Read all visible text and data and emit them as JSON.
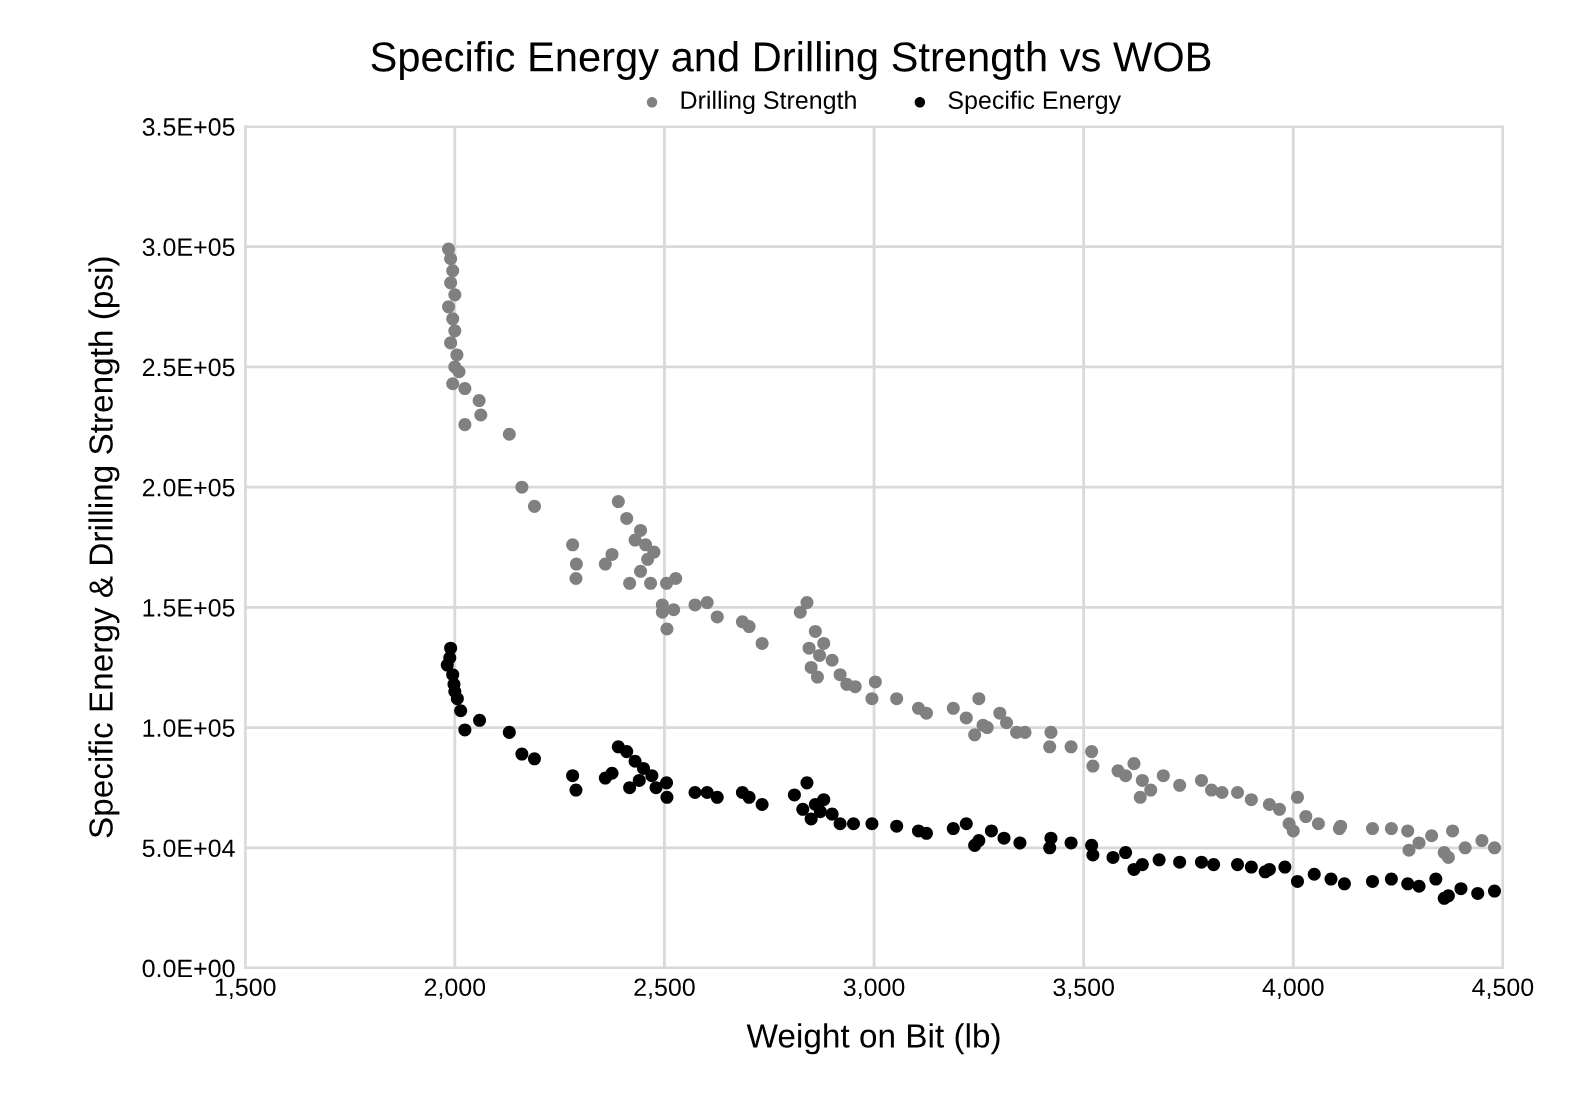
{
  "chart_data": {
    "type": "scatter",
    "title": "Specific Energy and Drilling Strength vs WOB",
    "xlabel": "Weight on Bit (lb)",
    "ylabel": "Specific Energy & Drilling Strength (psi)",
    "xlim": [
      1500,
      4500
    ],
    "xticks": [
      {
        "value": 1500,
        "label": "1,500"
      },
      {
        "value": 2000,
        "label": "2,000"
      },
      {
        "value": 2500,
        "label": "2,500"
      },
      {
        "value": 3000,
        "label": "3,000"
      },
      {
        "value": 3500,
        "label": "3,500"
      },
      {
        "value": 4000,
        "label": "4,000"
      },
      {
        "value": 4500,
        "label": "4,500"
      }
    ],
    "ylim": [
      0,
      350000
    ],
    "yticks": [
      {
        "value": 0,
        "label": "0.0E+00"
      },
      {
        "value": 50000,
        "label": "5.0E+04"
      },
      {
        "value": 100000,
        "label": "1.0E+05"
      },
      {
        "value": 150000,
        "label": "1.5E+05"
      },
      {
        "value": 200000,
        "label": "2.0E+05"
      },
      {
        "value": 250000,
        "label": "2.5E+05"
      },
      {
        "value": 300000,
        "label": "3.0E+05"
      },
      {
        "value": 350000,
        "label": "3.5E+05"
      }
    ],
    "grid": true,
    "legend": "top",
    "marker": "circle",
    "series": [
      {
        "name": "Drilling Strength",
        "color": "#808080",
        "x": [
          1985,
          1990,
          1995,
          1990,
          2000,
          1985,
          1995,
          2000,
          1990,
          2005,
          2000,
          2010,
          1995,
          2024,
          2058,
          2062,
          2024,
          2130,
          2160,
          2190,
          2281,
          2290,
          2289,
          2359,
          2375,
          2390,
          2410,
          2443,
          2460,
          2443,
          2475,
          2430,
          2455,
          2417,
          2467,
          2505,
          2527,
          2495,
          2495,
          2522,
          2506,
          2573,
          2602,
          2626,
          2686,
          2702,
          2733,
          2824,
          2840,
          2860,
          2850,
          2880,
          2870,
          2900,
          2919,
          2845,
          2865,
          2935,
          2955,
          3003,
          2995,
          3054,
          3106,
          3125,
          3189,
          3220,
          3250,
          3270,
          3300,
          3316,
          3240,
          3260,
          3340,
          3360,
          3422,
          3419,
          3470,
          3519,
          3522,
          3582,
          3600,
          3620,
          3640,
          3660,
          3690,
          3729,
          3635,
          3781,
          3805,
          3830,
          3867,
          3900,
          3943,
          3967,
          3990,
          4010,
          4030,
          4060,
          4110,
          4000,
          4113,
          4189,
          4234,
          4273,
          4276,
          4300,
          4330,
          4360,
          4380,
          4410,
          4450,
          4480,
          4370
        ],
        "values": [
          299000,
          295000,
          290000,
          285000,
          280000,
          275000,
          270000,
          265000,
          260000,
          255000,
          250000,
          248000,
          243000,
          241000,
          236000,
          230000,
          226000,
          222000,
          200000,
          192000,
          176000,
          168000,
          162000,
          168000,
          172000,
          194000,
          187000,
          182000,
          170000,
          165000,
          173000,
          178000,
          176000,
          160000,
          160000,
          160000,
          162000,
          151000,
          148000,
          149000,
          141000,
          151000,
          152000,
          146000,
          144000,
          142000,
          135000,
          148000,
          152000,
          140000,
          125000,
          135000,
          130000,
          128000,
          122000,
          133000,
          121000,
          118000,
          117000,
          119000,
          112000,
          112000,
          108000,
          106000,
          108000,
          104000,
          112000,
          100000,
          106000,
          102000,
          97000,
          101000,
          98000,
          98000,
          98000,
          92000,
          92000,
          90000,
          84000,
          82000,
          80000,
          85000,
          78000,
          74000,
          80000,
          76000,
          71000,
          78000,
          74000,
          73000,
          73000,
          70000,
          68000,
          66000,
          60000,
          71000,
          63000,
          60000,
          58000,
          57000,
          59000,
          58000,
          58000,
          57000,
          49000,
          52000,
          55000,
          48000,
          57000,
          50000,
          53000,
          50000,
          46000
        ]
      },
      {
        "name": "Specific Energy",
        "color": "#000000",
        "x": [
          1990,
          1982,
          1988,
          1998,
          1995,
          2006,
          2000,
          2014,
          2024,
          2059,
          2130,
          2160,
          2190,
          2281,
          2289,
          2359,
          2375,
          2390,
          2410,
          2430,
          2450,
          2440,
          2470,
          2480,
          2505,
          2417,
          2506,
          2573,
          2602,
          2626,
          2686,
          2702,
          2733,
          2810,
          2840,
          2860,
          2872,
          2850,
          2880,
          2900,
          2919,
          2830,
          2951,
          2995,
          3054,
          3106,
          3125,
          3189,
          3220,
          3250,
          3280,
          3310,
          3348,
          3240,
          3422,
          3419,
          3470,
          3519,
          3522,
          3570,
          3600,
          3640,
          3680,
          3729,
          3620,
          3781,
          3810,
          3867,
          3900,
          3943,
          3933,
          3980,
          4010,
          4050,
          4090,
          4122,
          4189,
          4234,
          4273,
          4300,
          4340,
          4370,
          4400,
          4440,
          4480,
          4360
        ],
        "values": [
          133000,
          126000,
          129000,
          118000,
          122000,
          112000,
          115000,
          107000,
          99000,
          103000,
          98000,
          89000,
          87000,
          80000,
          74000,
          79000,
          81000,
          92000,
          90000,
          86000,
          83000,
          78000,
          80000,
          75000,
          77000,
          75000,
          71000,
          73000,
          73000,
          71000,
          73000,
          71000,
          68000,
          72000,
          77000,
          68000,
          65000,
          62000,
          70000,
          64000,
          60000,
          66000,
          60000,
          60000,
          59000,
          57000,
          56000,
          58000,
          60000,
          53000,
          57000,
          54000,
          52000,
          51000,
          54000,
          50000,
          52000,
          51000,
          47000,
          46000,
          48000,
          43000,
          45000,
          44000,
          41000,
          44000,
          43000,
          43000,
          42000,
          41000,
          40000,
          42000,
          36000,
          39000,
          37000,
          35000,
          36000,
          37000,
          35000,
          34000,
          37000,
          30000,
          33000,
          31000,
          32000,
          29000
        ]
      }
    ]
  }
}
